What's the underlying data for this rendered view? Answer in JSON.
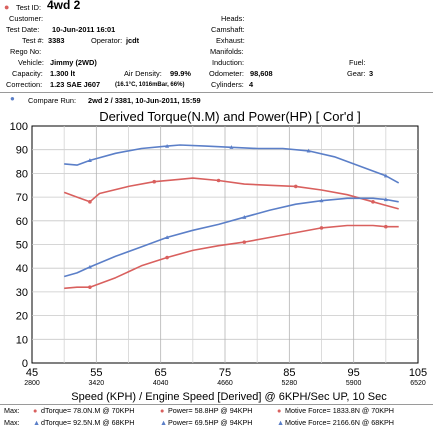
{
  "header": {
    "test_id_label": "Test ID:",
    "test_id": "4wd 2",
    "customer_label": "Customer:",
    "customer": "",
    "test_date_label": "Test Date:",
    "test_date": "10-Jun-2011 16:01",
    "test_no_label": "Test #:",
    "test_no": "3383",
    "operator_label": "Operator:",
    "operator": "jcdt",
    "rego_label": "Rego No:",
    "vehicle_label": "Vehicle:",
    "vehicle": "Jimmy (2WD)",
    "capacity_label": "Capacity:",
    "capacity": "1.300 lt",
    "air_density_label": "Air Density:",
    "air_density": "99.9%",
    "correction_label": "Correction:",
    "correction": "1.23 SAE J607",
    "correction_detail": "(16.1°C, 1016mBar, 66%)",
    "heads_label": "Heads:",
    "camshaft_label": "Camshaft:",
    "exhaust_label": "Exhaust:",
    "manifolds_label": "Manifolds:",
    "induction_label": "Induction:",
    "fuel_label": "Fuel:",
    "odometer_label": "Odometer:",
    "odometer": "98,608",
    "gear_label": "Gear:",
    "gear": "3",
    "cylinders_label": "Cylinders:",
    "cylinders": "4",
    "compare_label": "Compare Run:",
    "compare_value": "2wd 2 / 3381,   10-Jun-2011,    15:59"
  },
  "chart_data": {
    "type": "line",
    "title": "Derived Torque(N.M) and Power(HP)     [ Cor'd ]",
    "xlabel": "Speed (KPH) / Engine Speed [Derived] @ 6KPH/Sec UP, 10 Sec",
    "x_ticks": [
      45,
      55,
      65,
      75,
      85,
      95,
      105
    ],
    "x_ticks_rpm": [
      2800,
      3420,
      4040,
      4660,
      5280,
      5900,
      6520
    ],
    "xlim": [
      45,
      105
    ],
    "ylim": [
      0,
      100
    ],
    "y_ticks": [
      0,
      10,
      20,
      30,
      40,
      50,
      60,
      70,
      80,
      90,
      100
    ],
    "grid": true,
    "series": [
      {
        "color": "#5b7fc8",
        "marker": "triangle",
        "x": [
          50,
          52,
          54,
          58,
          62,
          66,
          68,
          72,
          76,
          80,
          84,
          88,
          92,
          96,
          100,
          102
        ],
        "y": [
          84,
          83.5,
          85.5,
          88.5,
          90.5,
          91.5,
          92,
          91.5,
          91,
          90.5,
          90.5,
          89.5,
          87,
          83,
          79,
          76
        ]
      },
      {
        "color": "#d9605e",
        "marker": "circle",
        "x": [
          50,
          52,
          54,
          55.5,
          60,
          64,
          68,
          70,
          74,
          78,
          82,
          86,
          90,
          94,
          98,
          100,
          102
        ],
        "y": [
          72,
          70,
          68,
          71.5,
          74.5,
          76.5,
          77.5,
          78,
          77,
          75.5,
          75,
          74.5,
          73,
          71,
          68,
          66.5,
          65
        ]
      },
      {
        "color": "#5b7fc8",
        "marker": "triangle",
        "x": [
          50,
          52,
          54,
          58,
          62,
          66,
          70,
          74,
          78,
          82,
          86,
          90,
          94,
          98,
          100,
          102
        ],
        "y": [
          36.5,
          38,
          40.5,
          45,
          49,
          53,
          56,
          58.5,
          61.5,
          64.5,
          67,
          68.5,
          69.5,
          69.5,
          69,
          68
        ]
      },
      {
        "color": "#d9605e",
        "marker": "circle",
        "x": [
          50,
          52,
          54,
          58,
          62,
          66,
          70,
          74,
          78,
          82,
          86,
          90,
          94,
          98,
          100,
          102
        ],
        "y": [
          31.5,
          32,
          32,
          36,
          41,
          44.5,
          47.5,
          49.5,
          51,
          53,
          55,
          57,
          58,
          58,
          57.5,
          57.5
        ]
      }
    ]
  },
  "footer": {
    "max_label": "Max:",
    "row1": {
      "torque": "dTorque= 78.0N.M @ 70KPH",
      "power": "Power= 58.8HP @ 94KPH",
      "force": "Motive Force= 1833.8N @ 70KPH"
    },
    "row2": {
      "torque": "dTorque= 92.5N.M @ 68KPH",
      "power": "Power= 69.5HP @ 94KPH",
      "force": "Motive Force= 2166.6N @ 68KPH"
    },
    "color_red": "#d9605e",
    "color_blue": "#5b7fc8"
  }
}
